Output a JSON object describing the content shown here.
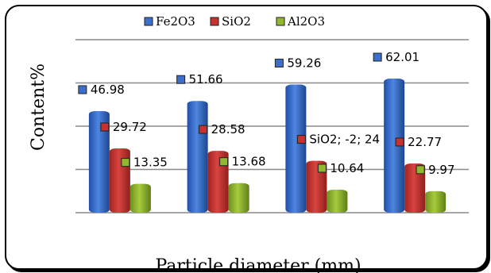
{
  "chart_data": {
    "type": "bar",
    "title": "",
    "xlabel": "Particle diameter (mm)",
    "ylabel": "Content%",
    "categories": [
      "",
      "",
      "",
      ""
    ],
    "series": [
      {
        "name": "Fe2O3",
        "values": [
          46.98,
          51.66,
          59.26,
          62.01
        ],
        "labels": [
          "46.98",
          "51.66",
          "59.26",
          "62.01"
        ],
        "color": "#3b6fcb"
      },
      {
        "name": "SiO2",
        "values": [
          29.72,
          28.58,
          24,
          22.77
        ],
        "labels": [
          "29.72",
          "28.58",
          "SiO2; -2; 24",
          "22.77"
        ],
        "color": "#c7312e"
      },
      {
        "name": "Al2O3",
        "values": [
          13.35,
          13.68,
          10.64,
          9.97
        ],
        "labels": [
          "13.35",
          "13.68",
          "10.64",
          "9.97"
        ],
        "color": "#92b82e"
      }
    ],
    "ylim": [
      0,
      80
    ],
    "grid": true,
    "legend_position": "top"
  }
}
